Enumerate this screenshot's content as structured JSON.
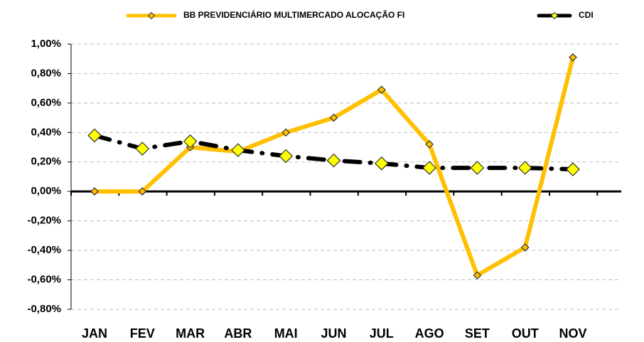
{
  "chart_data": {
    "type": "line",
    "categories": [
      "JAN",
      "FEV",
      "MAR",
      "ABR",
      "MAI",
      "JUN",
      "JUL",
      "AGO",
      "SET",
      "OUT",
      "NOV"
    ],
    "series": [
      {
        "name": "BB PREVIDENCIÁRIO MULTIMERCADO ALOCAÇÃO FI",
        "color": "#ffc000",
        "marker_color": "#ffc000",
        "line_style": "solid",
        "values": [
          0.0,
          0.0,
          0.3,
          0.27,
          0.4,
          0.5,
          0.69,
          0.32,
          -0.57,
          -0.38,
          0.91
        ]
      },
      {
        "name": "CDI",
        "color": "#000000",
        "marker_color": "#ffff00",
        "line_style": "dash-dot",
        "values": [
          0.38,
          0.29,
          0.34,
          0.28,
          0.24,
          0.21,
          0.19,
          0.16,
          0.16,
          0.16,
          0.15
        ]
      }
    ],
    "ylim": [
      -0.8,
      1.0
    ],
    "yticks": [
      {
        "value": -0.8,
        "label": "-0,80%"
      },
      {
        "value": -0.6,
        "label": "-0,60%"
      },
      {
        "value": -0.4,
        "label": "-0,40%"
      },
      {
        "value": -0.2,
        "label": "-0,20%"
      },
      {
        "value": 0,
        "label": "0,00%"
      },
      {
        "value": 0.2,
        "label": "0,20%"
      },
      {
        "value": 0.4,
        "label": "0,40%"
      },
      {
        "value": 0.6,
        "label": "0,60%"
      },
      {
        "value": 0.8,
        "label": "0,80%"
      },
      {
        "value": 1.0,
        "label": "1,00%"
      }
    ],
    "grid": true,
    "legend": "top"
  }
}
